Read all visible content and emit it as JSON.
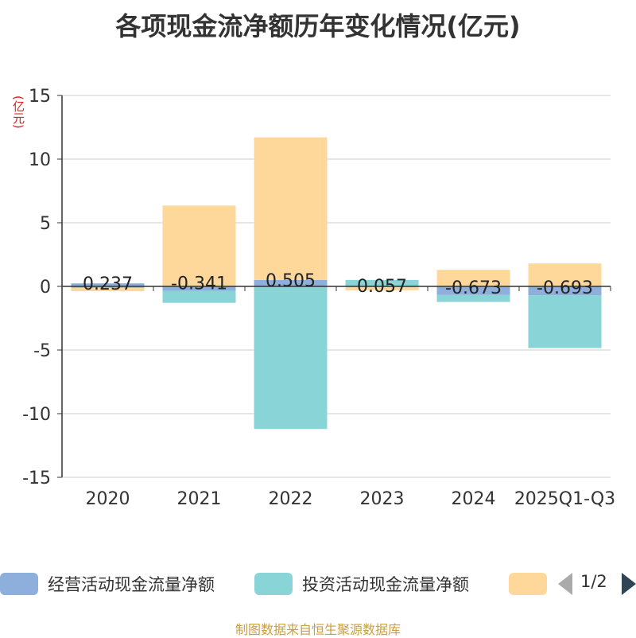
{
  "title": "各项现金流净额历年变化情况(亿元)",
  "unit_label": "(亿元)",
  "source_note": "制图数据来自恒生聚源数据库",
  "pager": {
    "text": "1/2"
  },
  "chart_data": {
    "type": "bar",
    "stacked": true,
    "categories": [
      "2020",
      "2021",
      "2022",
      "2023",
      "2024",
      "2025Q1-Q3"
    ],
    "ylim": [
      -15,
      15
    ],
    "yticks": [
      15,
      10,
      5,
      0,
      -5,
      -10,
      -15
    ],
    "ytick_labels": [
      "15",
      "10",
      "5",
      "0",
      "-5",
      "-10",
      "-15"
    ],
    "grid": true,
    "legend_position": "bottom",
    "series": [
      {
        "name": "经营活动现金流量净额",
        "color": "#8eaedb",
        "values": [
          0.237,
          -0.341,
          0.505,
          0.057,
          -0.673,
          -0.693
        ],
        "labels": [
          "0.237",
          "-0.341",
          "0.505",
          "0.057",
          "-0.673",
          "-0.693"
        ]
      },
      {
        "name": "投资活动现金流量净额",
        "color": "#88d4d6",
        "values": [
          -0.13,
          -0.95,
          -11.2,
          0.45,
          -0.55,
          -4.15
        ]
      },
      {
        "name": "",
        "color": "#fdd89a",
        "values": [
          -0.25,
          6.35,
          11.2,
          -0.3,
          1.3,
          1.8
        ]
      }
    ]
  }
}
